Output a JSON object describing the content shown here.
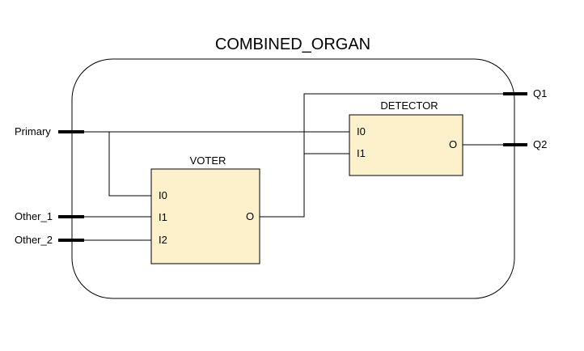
{
  "diagram": {
    "title": "COMBINED_ORGAN",
    "inputs": [
      "Primary",
      "Other_1",
      "Other_2"
    ],
    "outputs": [
      "Q1",
      "Q2"
    ],
    "blocks": {
      "voter": {
        "name": "VOTER",
        "inputs": [
          "I0",
          "I1",
          "I2"
        ],
        "output": "O"
      },
      "detector": {
        "name": "DETECTOR",
        "inputs": [
          "I0",
          "I1"
        ],
        "output": "O"
      }
    },
    "colors": {
      "block_fill": "#fdf1cc",
      "stroke": "#000000",
      "background": "#ffffff"
    }
  }
}
